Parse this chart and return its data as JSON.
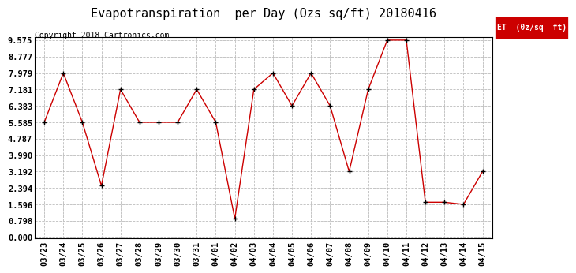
{
  "title": "Evapotranspiration  per Day (Ozs sq/ft) 20180416",
  "copyright": "Copyright 2018 Cartronics.com",
  "legend_label": "ET  (0z/sq  ft)",
  "x_labels": [
    "03/23",
    "03/24",
    "03/25",
    "03/26",
    "03/27",
    "03/28",
    "03/29",
    "03/30",
    "03/31",
    "04/01",
    "04/02",
    "04/03",
    "04/04",
    "04/05",
    "04/06",
    "04/07",
    "04/08",
    "04/09",
    "04/10",
    "04/11",
    "04/12",
    "04/13",
    "04/14",
    "04/15"
  ],
  "y_values": [
    5.585,
    7.979,
    5.585,
    2.5,
    7.181,
    5.585,
    5.585,
    5.585,
    7.181,
    5.585,
    0.9,
    7.181,
    7.979,
    6.383,
    7.979,
    6.383,
    3.192,
    7.181,
    9.575,
    9.575,
    1.7,
    1.7,
    1.596,
    3.192
  ],
  "y_ticks": [
    0.0,
    0.798,
    1.596,
    2.394,
    3.192,
    3.99,
    4.787,
    5.585,
    6.383,
    7.181,
    7.979,
    8.777,
    9.575
  ],
  "line_color": "#cc0000",
  "marker_color": "#000000",
  "bg_color": "#ffffff",
  "grid_color": "#bbbbbb",
  "legend_bg": "#cc0000",
  "legend_text_color": "#ffffff",
  "title_fontsize": 11,
  "copyright_fontsize": 7,
  "tick_fontsize": 7.5,
  "ylim": [
    0.0,
    9.575
  ]
}
